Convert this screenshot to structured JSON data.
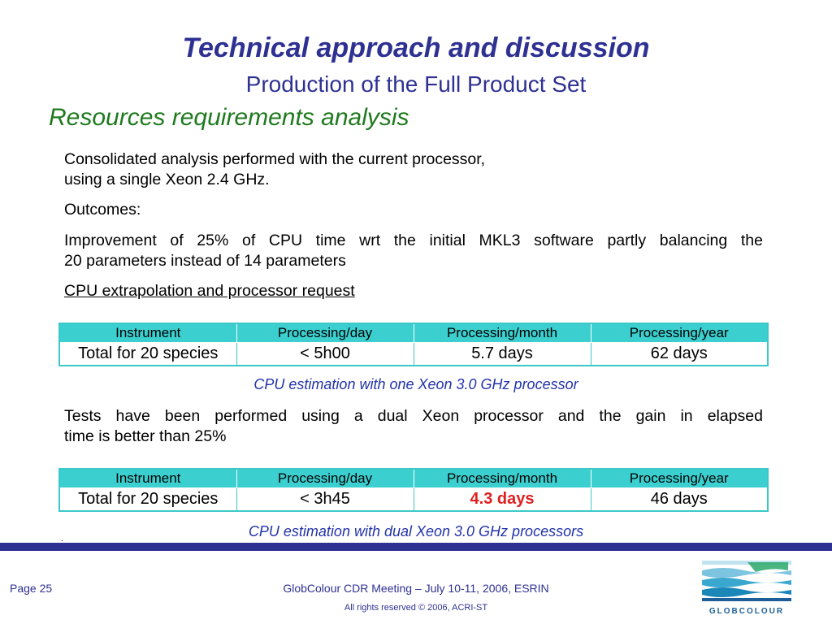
{
  "header": {
    "title": "Technical approach and discussion",
    "subtitle": "Production of the Full Product Set",
    "section": "Resources requirements analysis"
  },
  "body": {
    "intro_line1": "Consolidated analysis performed with the current processor,",
    "intro_line2": "using a single Xeon 2.4 GHz.",
    "outcomes": "Outcomes:",
    "improvement_line1": "Improvement of 25% of CPU time wrt the initial MKL3 software partly balancing the",
    "improvement_line2": "20 parameters instead of 14 parameters",
    "extrapolation": "CPU extrapolation and processor request",
    "tests_line1": "Tests have been performed using a dual Xeon processor and the gain in elapsed",
    "tests_line2": "time is better than 25%"
  },
  "table1": {
    "headers": [
      "Instrument",
      "Processing/day",
      "Processing/month",
      "Processing/year"
    ],
    "row": [
      "Total for 20 species",
      "< 5h00",
      "5.7 days",
      "62 days"
    ],
    "caption": "CPU estimation with one Xeon 3.0 GHz processor"
  },
  "table2": {
    "headers": [
      "Instrument",
      "Processing/day",
      "Processing/month",
      "Processing/year"
    ],
    "row": [
      "Total for 20 species",
      "< 3h45",
      "4.3 days",
      "46 days"
    ],
    "caption": "CPU estimation with dual Xeon 3.0 GHz processors"
  },
  "footer": {
    "page": "Page 25",
    "meeting": "GlobColour CDR Meeting – July 10-11, 2006, ESRIN",
    "rights": "All rights reserved © 2006, ACRI-ST",
    "logo_text": "GLOBCOLOUR",
    "dot": "."
  },
  "colors": {
    "title": "#2e3192",
    "section": "#1f7a1f",
    "table_header": "#3ccfcf",
    "highlight": "#e02020",
    "footer_bar": "#2e3192"
  }
}
